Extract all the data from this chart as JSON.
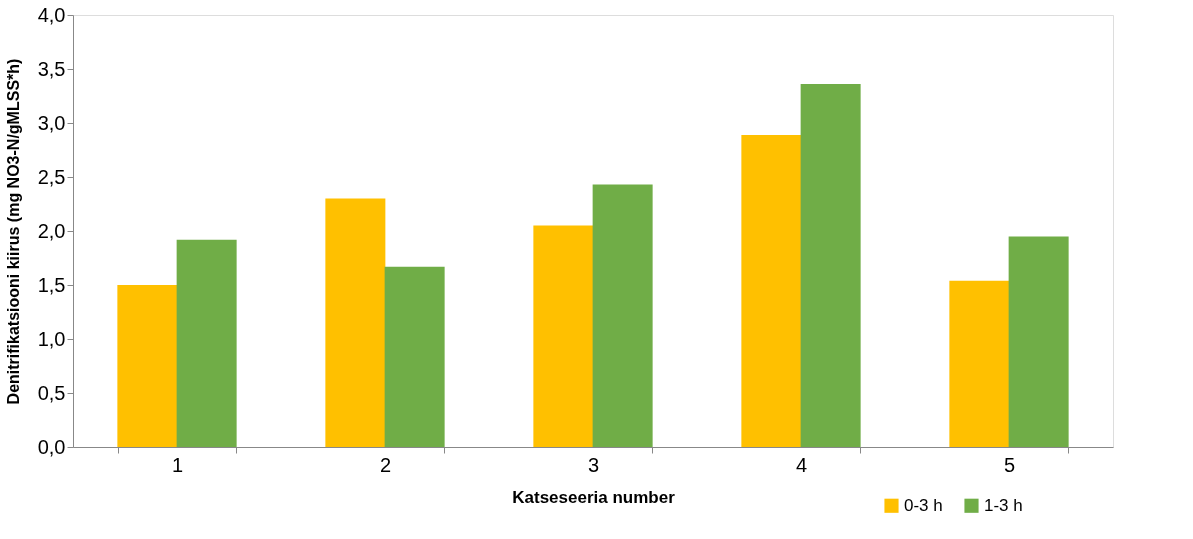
{
  "chart_data": {
    "type": "bar",
    "xlabel": "Katseseeria number",
    "ylabel": "Denitrifikatsiooni kiirus (mg NO3-N/gMLSS*h)",
    "categories": [
      "1",
      "2",
      "3",
      "4",
      "5"
    ],
    "series": [
      {
        "name": "0-3 h",
        "color": "#ffc000",
        "values": [
          1.5,
          2.3,
          2.05,
          2.89,
          1.54
        ]
      },
      {
        "name": "1-3 h",
        "color": "#70ad47",
        "values": [
          1.92,
          1.67,
          2.43,
          3.36,
          1.95
        ]
      }
    ],
    "ylim": [
      0,
      4
    ],
    "yticks": [
      {
        "value": 0,
        "label": "0,0"
      },
      {
        "value": 0.5,
        "label": "0,5"
      },
      {
        "value": 1,
        "label": "1,0"
      },
      {
        "value": 1.5,
        "label": "1,5"
      },
      {
        "value": 2,
        "label": "2,0"
      },
      {
        "value": 2.5,
        "label": "2,5"
      },
      {
        "value": 3,
        "label": "3,0"
      },
      {
        "value": 3.5,
        "label": "3,5"
      },
      {
        "value": 4,
        "label": "4,0"
      }
    ],
    "grid": false,
    "legend": "bottom right"
  }
}
